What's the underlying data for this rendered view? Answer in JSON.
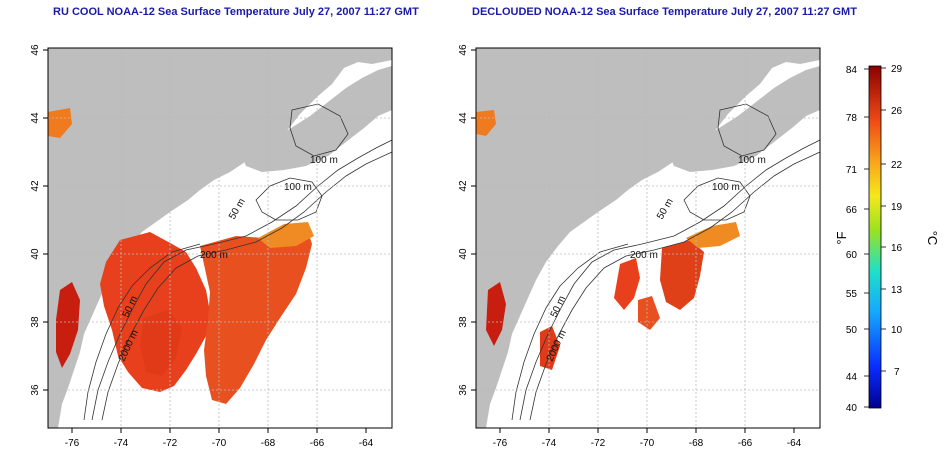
{
  "panels": [
    {
      "title": "RU COOL NOAA-12 Sea Surface Temperature July 27, 2007 11:27 GMT",
      "x_ticks": [
        "-76",
        "-74",
        "-72",
        "-70",
        "-68",
        "-66",
        "-64"
      ],
      "y_ticks": [
        "36",
        "38",
        "40",
        "42",
        "44",
        "46"
      ],
      "contour_labels": [
        "100 m",
        "100 m",
        "50 m",
        "200 m",
        "50 m",
        "2000 m"
      ]
    },
    {
      "title": "DECLOUDED NOAA-12 Sea Surface Temperature July 27, 2007 11:27 GMT",
      "x_ticks": [
        "-76",
        "-74",
        "-72",
        "-70",
        "-68",
        "-66",
        "-64"
      ],
      "y_ticks": [
        "36",
        "38",
        "40",
        "42",
        "44",
        "46"
      ],
      "contour_labels": [
        "100 m",
        "100 m",
        "50 m",
        "200 m",
        "50 m",
        "2000 m"
      ]
    }
  ],
  "colorbar": {
    "fahrenheit_ticks": [
      "84",
      "78",
      "71",
      "66",
      "60",
      "55",
      "50",
      "44",
      "40"
    ],
    "celsius_ticks": [
      "29",
      "26",
      "22",
      "19",
      "16",
      "13",
      "10",
      "7"
    ],
    "left_unit": "°F",
    "right_unit": "°C"
  },
  "colors": {
    "land": "#bebebe",
    "ocean": "#ffffff",
    "sst_warm": "#e8401c",
    "sst_hot": "#c81e10",
    "sst_mid": "#f07a1e",
    "title": "#1a1aa8",
    "grid": "#bbbbbb"
  }
}
